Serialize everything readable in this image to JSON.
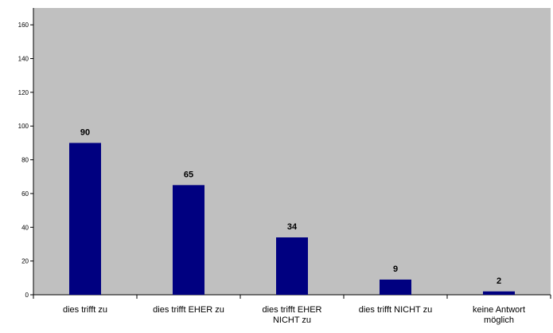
{
  "chart_data": {
    "type": "bar",
    "categories": [
      [
        "dies trifft zu"
      ],
      [
        "dies trifft EHER zu"
      ],
      [
        "dies trifft EHER",
        "NICHT zu"
      ],
      [
        "dies trifft NICHT zu"
      ],
      [
        "keine Antwort",
        "möglich"
      ]
    ],
    "values": [
      90,
      65,
      34,
      9,
      2
    ],
    "data_labels": [
      "90",
      "65",
      "34",
      "9",
      "2"
    ],
    "y_ticks": [
      "0",
      "20",
      "40",
      "60",
      "80",
      "100",
      "120",
      "140",
      "160"
    ],
    "ylim": [
      0,
      170
    ],
    "title": "",
    "xlabel": "",
    "ylabel": "",
    "grid": false,
    "legend": "none",
    "colors": {
      "plot_background": "#c0c0c0",
      "bar": "#000080",
      "axis": "#000000"
    }
  }
}
